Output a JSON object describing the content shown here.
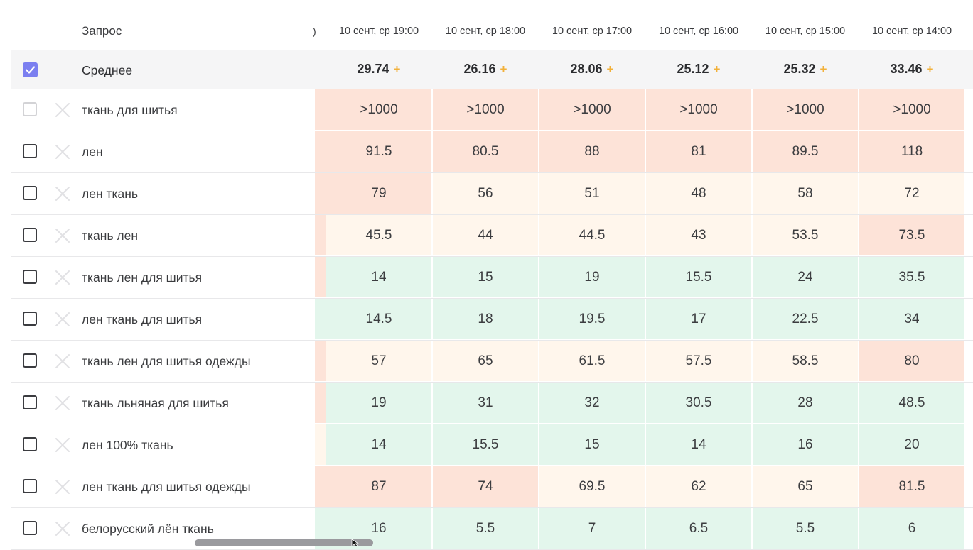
{
  "header": {
    "query_label": "Запрос",
    "truncated_col": ")",
    "columns": [
      "10 сент, ср 19:00",
      "10 сент, ср 18:00",
      "10 сент, ср 17:00",
      "10 сент, ср 16:00",
      "10 сент, ср 15:00",
      "10 сент, ср 14:00"
    ]
  },
  "average": {
    "label": "Среднее",
    "checked": true,
    "values": [
      "29.74",
      "26.16",
      "28.06",
      "25.12",
      "25.32",
      "33.46"
    ],
    "plus": "+"
  },
  "rows": [
    {
      "query": "ткань для шитья",
      "values": [
        ">1000",
        ">1000",
        ">1000",
        ">1000",
        ">1000",
        ">1000"
      ]
    },
    {
      "query": "лен",
      "values": [
        "91.5",
        "80.5",
        "88",
        "81",
        "89.5",
        "118"
      ]
    },
    {
      "query": "лен ткань",
      "values": [
        "79",
        "56",
        "51",
        "48",
        "58",
        "72"
      ]
    },
    {
      "query": "ткань лен",
      "values": [
        "45.5",
        "44",
        "44.5",
        "43",
        "53.5",
        "73.5"
      ]
    },
    {
      "query": "ткань лен для шитья",
      "values": [
        "14",
        "15",
        "19",
        "15.5",
        "24",
        "35.5"
      ]
    },
    {
      "query": "лен ткань для шитья",
      "values": [
        "14.5",
        "18",
        "19.5",
        "17",
        "22.5",
        "34"
      ]
    },
    {
      "query": "ткань лен для шитья одежды",
      "values": [
        "57",
        "65",
        "61.5",
        "57.5",
        "58.5",
        "80"
      ]
    },
    {
      "query": "ткань льняная для шитья",
      "values": [
        "19",
        "31",
        "32",
        "30.5",
        "28",
        "48.5"
      ]
    },
    {
      "query": "лен 100% ткань",
      "values": [
        "14",
        "15.5",
        "15",
        "14",
        "16",
        "20"
      ]
    },
    {
      "query": "лен ткань для шитья одежды",
      "values": [
        "87",
        "74",
        "69.5",
        "62",
        "65",
        "81.5"
      ]
    },
    {
      "query": "белорусский лён ткань",
      "values": [
        "16",
        "5.5",
        "7",
        "6.5",
        "5.5",
        "6"
      ]
    }
  ],
  "colors": {
    "accent": "#7b7ff0",
    "plus": "#f2b13a",
    "cell_bad": "#fde3d8",
    "cell_mid": "#fff6ec",
    "cell_good": "#e3f6ec"
  },
  "icons": {
    "remove": "close-icon",
    "check": "check-icon",
    "cursor": "mouse-pointer-icon"
  }
}
